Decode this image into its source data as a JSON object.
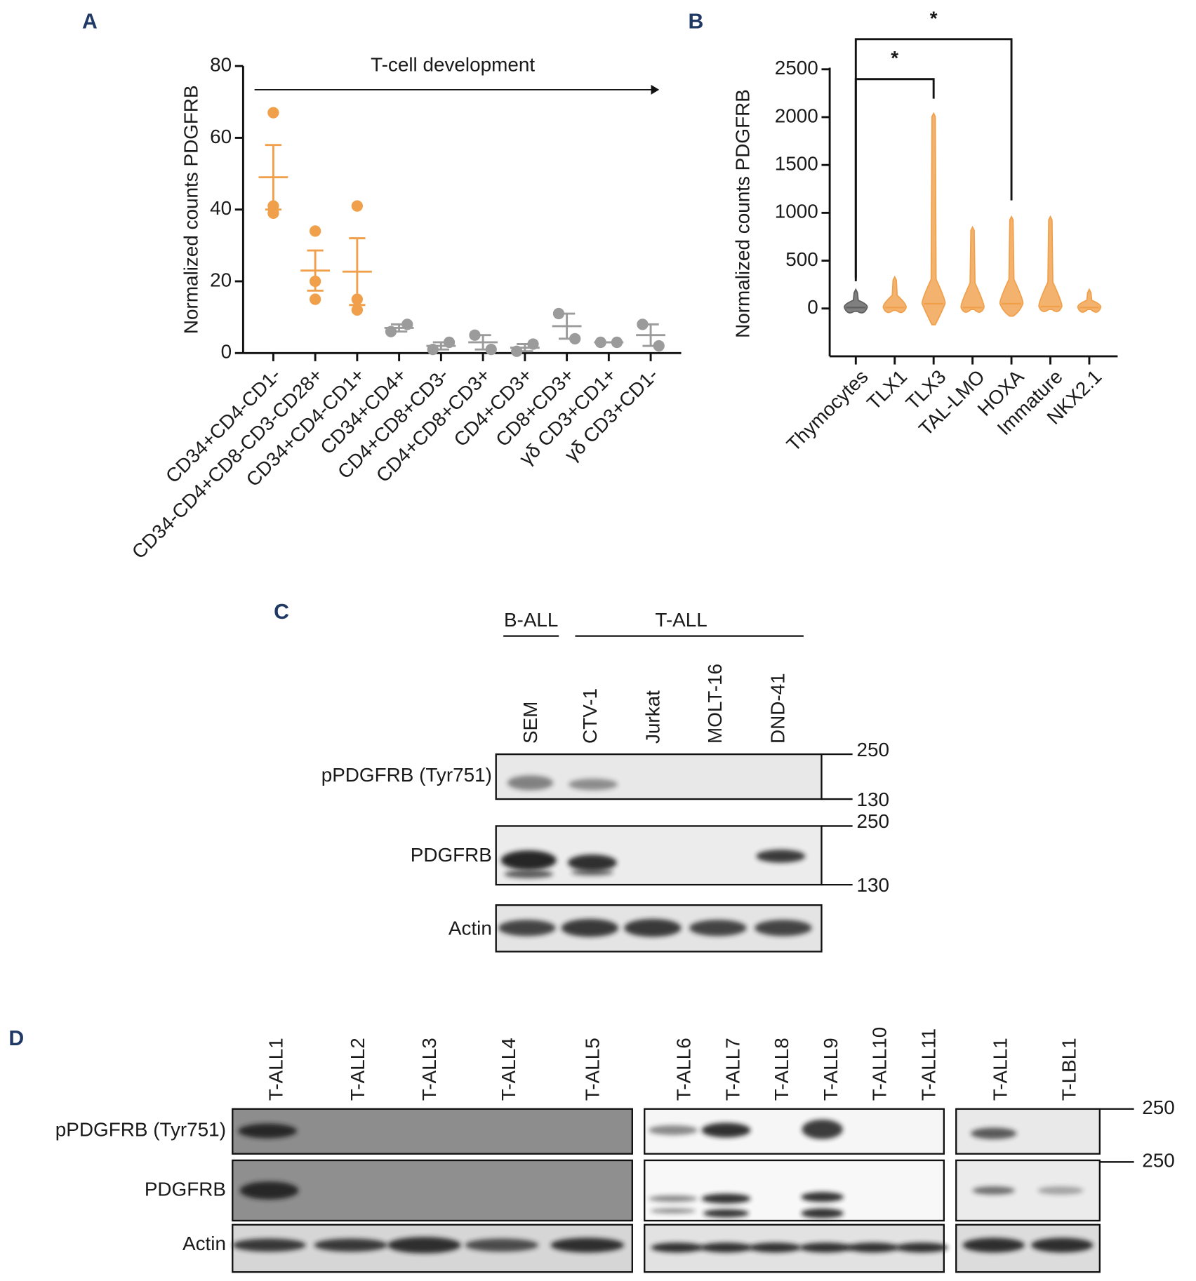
{
  "chart_data": [
    {
      "type": "scatter",
      "panel": "A",
      "ylabel": "Normalized counts PDGFRB",
      "annotation": "T-cell development",
      "categories": [
        "CD34+CD4-CD1-",
        "CD34-CD4+CD8-CD3-CD28+",
        "CD34+CD4-CD1+",
        "CD34+CD4+",
        "CD4+CD8+CD3-",
        "CD4+CD8+CD3+",
        "CD4+CD3+",
        "CD8+CD3+",
        "γδ CD3+CD1+",
        "γδ CD3+CD1-"
      ],
      "groups": [
        {
          "color": "#f0a04b",
          "points": [
            67,
            41,
            39
          ],
          "mean": 49,
          "error": 9
        },
        {
          "color": "#f0a04b",
          "points": [
            34,
            20,
            15
          ],
          "mean": 23,
          "error": 5.6
        },
        {
          "color": "#f0a04b",
          "points": [
            41,
            15,
            12
          ],
          "mean": 22.7,
          "error": 9.3
        },
        {
          "color": "#9b9b9b",
          "points": [
            6,
            8
          ],
          "mean": 7,
          "error": 1
        },
        {
          "color": "#9b9b9b",
          "points": [
            1,
            3
          ],
          "mean": 2,
          "error": 1
        },
        {
          "color": "#9b9b9b",
          "points": [
            5,
            1
          ],
          "mean": 3,
          "error": 2
        },
        {
          "color": "#9b9b9b",
          "points": [
            0.5,
            2.5
          ],
          "mean": 1.5,
          "error": 1
        },
        {
          "color": "#9b9b9b",
          "points": [
            11,
            4
          ],
          "mean": 7.5,
          "error": 3.5
        },
        {
          "color": "#9b9b9b",
          "points": [
            3,
            3
          ],
          "mean": 3,
          "error": 0
        },
        {
          "color": "#9b9b9b",
          "points": [
            8,
            2
          ],
          "mean": 5,
          "error": 3
        }
      ],
      "ylim": [
        0,
        80
      ],
      "yticks": [
        0,
        20,
        40,
        60,
        80
      ]
    },
    {
      "type": "violin",
      "panel": "B",
      "ylabel": "Normalized counts PDGFRB",
      "categories": [
        "Thymocytes",
        "TLX1",
        "TLX3",
        "TAL-LMO",
        "HOXA",
        "Immature",
        "NKX2.1"
      ],
      "violins": [
        {
          "color": "#5f5f5f",
          "min": -30,
          "median": 10,
          "max": 200
        },
        {
          "color": "#f0a04b",
          "min": -20,
          "median": 10,
          "max": 330
        },
        {
          "color": "#f0a04b",
          "min": -170,
          "median": 50,
          "max": 2040
        },
        {
          "color": "#f0a04b",
          "min": -10,
          "median": 10,
          "max": 850
        },
        {
          "color": "#f0a04b",
          "min": -80,
          "median": 50,
          "max": 960
        },
        {
          "color": "#f0a04b",
          "min": -10,
          "median": 20,
          "max": 960
        },
        {
          "color": "#f0a04b",
          "min": -10,
          "median": 10,
          "max": 200
        }
      ],
      "ylim": [
        -500,
        2500
      ],
      "yticks": [
        0,
        500,
        1000,
        1500,
        2000,
        2500
      ],
      "significance": [
        {
          "from": 0,
          "to": 2,
          "label": "*"
        },
        {
          "from": 0,
          "to": 4,
          "label": "*"
        }
      ]
    }
  ],
  "blots": {
    "C": {
      "panel": "C",
      "groups": [
        "B-ALL",
        "T-ALL"
      ],
      "lanes": [
        "SEM",
        "CTV-1",
        "Jurkat",
        "MOLT-16",
        "DND-41"
      ],
      "rows": [
        {
          "label": "pPDGFRB (Tyr751)",
          "markers": [
            250,
            130
          ]
        },
        {
          "label": "PDGFRB",
          "markers": [
            250,
            130
          ]
        },
        {
          "label": "Actin"
        }
      ]
    },
    "D": {
      "panel": "D",
      "blocks": [
        {
          "lanes": [
            "T-ALL1",
            "T-ALL2",
            "T-ALL3",
            "T-ALL4",
            "T-ALL5"
          ]
        },
        {
          "lanes": [
            "T-ALL6",
            "T-ALL7",
            "T-ALL8",
            "T-ALL9",
            "T-ALL10",
            "T-ALL11"
          ]
        },
        {
          "lanes": [
            "T-ALL1",
            "T-LBL1"
          ]
        }
      ],
      "rows": [
        {
          "label": "pPDGFRB (Tyr751)",
          "markers": [
            250
          ]
        },
        {
          "label": "PDGFRB",
          "markers": [
            250
          ]
        },
        {
          "label": "Actin"
        }
      ]
    }
  }
}
